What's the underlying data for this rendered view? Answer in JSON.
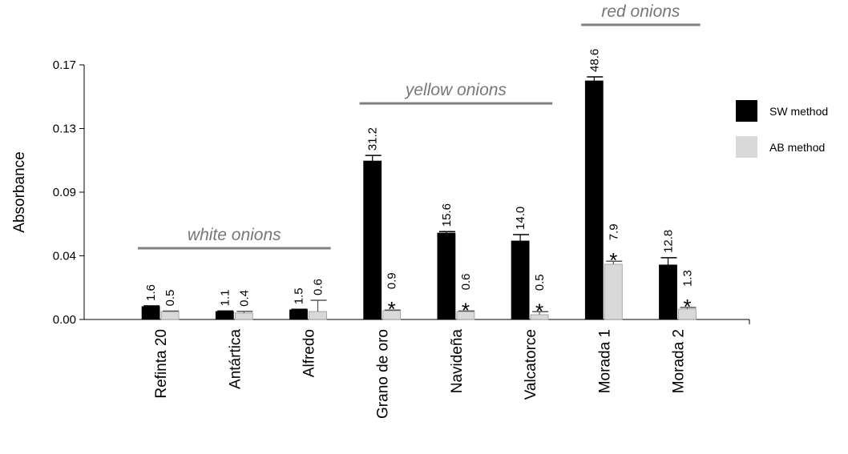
{
  "chart_data": {
    "type": "bar",
    "y_label": "Absorbance",
    "categories": [
      "Refinta 20",
      "Antártica",
      "Alfredo",
      "Grano de oro",
      "Navideña",
      "Valcatorce",
      "Morada 1",
      "Morada 2"
    ],
    "series": [
      {
        "name": "SW method",
        "color": "#000000",
        "values": [
          0.0086,
          0.0053,
          0.0064,
          0.1058,
          0.0577,
          0.0524,
          0.1593,
          0.0364
        ],
        "errors": [
          0.0005,
          0.0004,
          0.0004,
          0.0037,
          0.001,
          0.0043,
          0.0027,
          0.0048
        ],
        "labels": [
          "1.6",
          "1.1",
          "1.5",
          "31.2",
          "15.6",
          "14.0",
          "48.6",
          "12.8"
        ],
        "significant": [
          false,
          false,
          false,
          false,
          false,
          false,
          false,
          false
        ]
      },
      {
        "name": "AB method",
        "color": "#d9d9d9",
        "values": [
          0.0053,
          0.0043,
          0.0053,
          0.0059,
          0.0053,
          0.0032,
          0.0369,
          0.007
        ],
        "errors": [
          0.0003,
          0.0011,
          0.0075,
          0.0004,
          0.0004,
          0.002,
          0.002,
          0.001
        ],
        "labels": [
          "0.5",
          "0.4",
          "0.6",
          "0.9",
          "0.6",
          "0.5",
          "7.9",
          "1.3"
        ],
        "significant": [
          false,
          false,
          false,
          true,
          true,
          true,
          true,
          true
        ]
      }
    ],
    "significance_marker": "*",
    "groups": [
      {
        "label": "white onions",
        "from": 0,
        "to": 2
      },
      {
        "label": "yellow onions",
        "from": 3,
        "to": 5
      },
      {
        "label": "red onions",
        "from": 6,
        "to": 7
      }
    ],
    "ylim": [
      0,
      0.17
    ],
    "yticks": [
      {
        "value": 0,
        "label": "0.00"
      },
      {
        "value": 0.0425,
        "label": "0.04"
      },
      {
        "value": 0.085,
        "label": "0.09"
      },
      {
        "value": 0.1275,
        "label": "0.13"
      },
      0.17
    ],
    "legend": "right"
  }
}
